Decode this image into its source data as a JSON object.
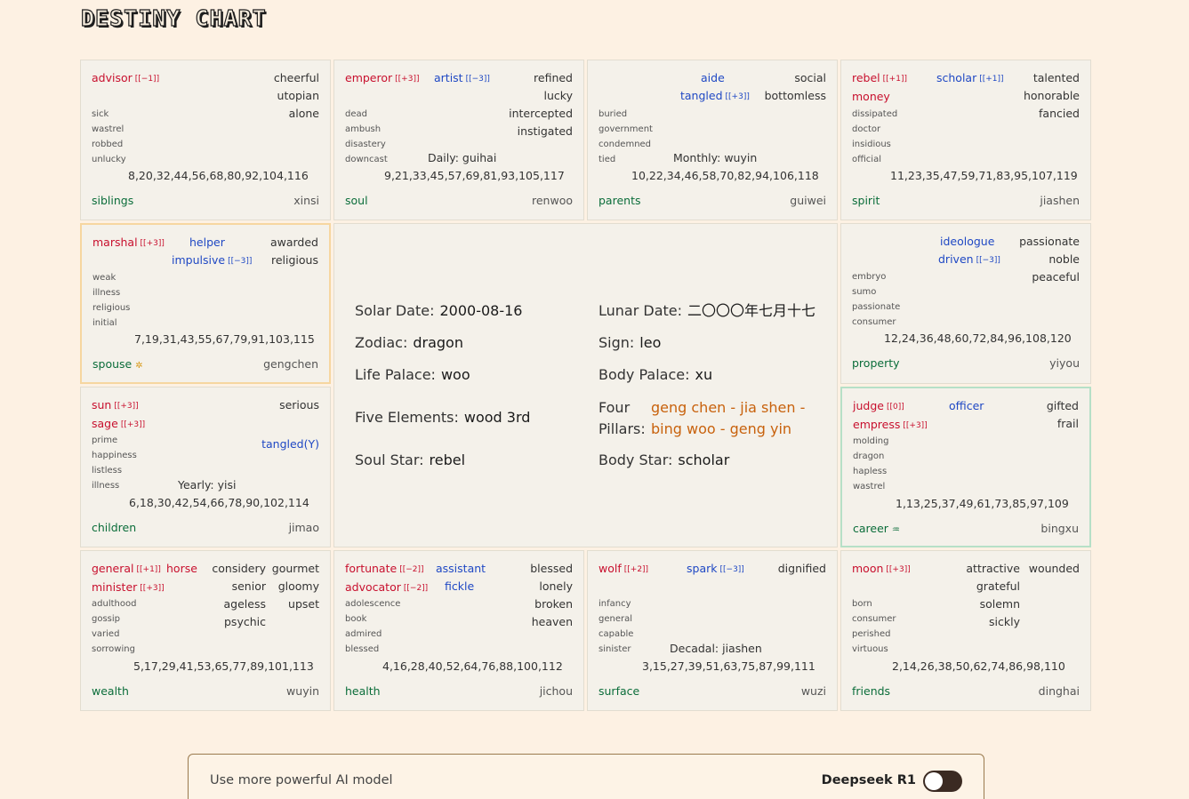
{
  "title": "DESTINY CHART",
  "palaces": [
    {
      "id": "siblings",
      "name": "siblings",
      "branch": "xinsi",
      "nums": "8,20,32,44,56,68,80,92,104,116",
      "majors": [
        {
          "text": "advisor",
          "tag": "[[−1]]"
        }
      ],
      "minors": [],
      "adj": [
        "cheerful",
        "utopian",
        "alone"
      ],
      "small": [
        "sick",
        "wastrel",
        "robbed",
        "unlucky"
      ],
      "extra": ""
    },
    {
      "id": "soul",
      "name": "soul",
      "branch": "renwoo",
      "nums": "9,21,33,45,57,69,81,93,105,117",
      "majors": [
        {
          "text": "emperor",
          "tag": "[[+3]]"
        }
      ],
      "minors": [
        {
          "text": "artist",
          "tag": "[[−3]]"
        }
      ],
      "adj": [
        "refined",
        "lucky",
        "intercepted",
        "instigated"
      ],
      "small": [
        "dead",
        "ambush",
        "disastery",
        "downcast"
      ],
      "extra": "Daily: guihai"
    },
    {
      "id": "parents",
      "name": "parents",
      "branch": "guiwei",
      "nums": "10,22,34,46,58,70,82,94,106,118",
      "majors": [],
      "minors": [
        {
          "text": "aide",
          "tag": ""
        },
        {
          "text": "tangled",
          "tag": "[[+3]]"
        }
      ],
      "adj": [
        "social",
        "bottomless"
      ],
      "small": [
        "buried",
        "government",
        "condemned",
        "tied"
      ],
      "extra": "Monthly: wuyin"
    },
    {
      "id": "spirit",
      "name": "spirit",
      "branch": "jiashen",
      "nums": "11,23,35,47,59,71,83,95,107,119",
      "majors": [
        {
          "text": "rebel",
          "tag": "[[+1]]"
        },
        {
          "text": "money",
          "tag": ""
        }
      ],
      "minors": [
        {
          "text": "scholar",
          "tag": "[[+1]]"
        }
      ],
      "adj": [
        "talented",
        "honorable",
        "fancied"
      ],
      "small": [
        "dissipated",
        "doctor",
        "insidious",
        "official"
      ],
      "extra": ""
    },
    {
      "id": "spouse",
      "name": "spouse",
      "branch": "gengchen",
      "nums": "7,19,31,43,55,67,79,91,103,115",
      "majors": [
        {
          "text": "marshal",
          "tag": "[[+3]]"
        }
      ],
      "minors": [
        {
          "text": "helper",
          "tag": ""
        },
        {
          "text": "impulsive",
          "tag": "[[−3]]"
        }
      ],
      "adj": [
        "awarded",
        "religious"
      ],
      "small": [
        "weak",
        "illness",
        "religious",
        "initial"
      ],
      "extra": ""
    },
    {
      "id": "property",
      "name": "property",
      "branch": "yiyou",
      "nums": "12,24,36,48,60,72,84,96,108,120",
      "majors": [],
      "minors": [
        {
          "text": "ideologue",
          "tag": ""
        },
        {
          "text": "driven",
          "tag": "[[−3]]"
        }
      ],
      "adj": [
        "passionate",
        "noble",
        "peaceful"
      ],
      "small": [
        "embryo",
        "sumo",
        "passionate",
        "consumer"
      ],
      "extra": ""
    },
    {
      "id": "children",
      "name": "children",
      "branch": "jimao",
      "nums": "6,18,30,42,54,66,78,90,102,114",
      "majors": [
        {
          "text": "sun",
          "tag": "[[+3]]"
        },
        {
          "text": "sage",
          "tag": "[[+3]]"
        }
      ],
      "minors": [
        {
          "text": "tangled(Y)",
          "tag": ""
        }
      ],
      "adj": [
        "serious"
      ],
      "small": [
        "prime",
        "happiness",
        "listless",
        "illness"
      ],
      "extra": "Yearly: yisi"
    },
    {
      "id": "career",
      "name": "career",
      "branch": "bingxu",
      "nums": "1,13,25,37,49,61,73,85,97,109",
      "majors": [
        {
          "text": "judge",
          "tag": "[[0]]"
        },
        {
          "text": "empress",
          "tag": "[[+3]]"
        }
      ],
      "minors": [
        {
          "text": "officer",
          "tag": ""
        }
      ],
      "adj": [
        "gifted",
        "frail"
      ],
      "small": [
        "molding",
        "dragon",
        "hapless",
        "wastrel"
      ],
      "extra": ""
    },
    {
      "id": "wealth",
      "name": "wealth",
      "branch": "wuyin",
      "nums": "5,17,29,41,53,65,77,89,101,113",
      "majors": [
        {
          "text": "general",
          "tag": "[[+1]]"
        },
        {
          "text": "minister",
          "tag": "[[+3]]"
        }
      ],
      "minors": [
        {
          "text": "horse",
          "tag": ""
        }
      ],
      "adj": [
        "considery",
        "gourmet",
        "senior",
        "gloomy",
        "ageless",
        "upset",
        "psychic"
      ],
      "small": [
        "adulthood",
        "gossip",
        "varied",
        "sorrowing"
      ],
      "extra": ""
    },
    {
      "id": "health",
      "name": "health",
      "branch": "jichou",
      "nums": "4,16,28,40,52,64,76,88,100,112",
      "majors": [
        {
          "text": "fortunate",
          "tag": "[[−2]]"
        },
        {
          "text": "advocator",
          "tag": "[[−2]]"
        }
      ],
      "minors": [
        {
          "text": "assistant",
          "tag": ""
        },
        {
          "text": "fickle",
          "tag": ""
        }
      ],
      "adj": [
        "blessed",
        "lonely",
        "broken",
        "heaven"
      ],
      "small": [
        "adolescence",
        "book",
        "admired",
        "blessed"
      ],
      "extra": ""
    },
    {
      "id": "surface",
      "name": "surface",
      "branch": "wuzi",
      "nums": "3,15,27,39,51,63,75,87,99,111",
      "majors": [
        {
          "text": "wolf",
          "tag": "[[+2]]"
        }
      ],
      "minors": [
        {
          "text": "spark",
          "tag": "[[−3]]"
        }
      ],
      "adj": [
        "dignified"
      ],
      "small": [
        "infancy",
        "general",
        "capable",
        "sinister"
      ],
      "extra": "Decadal: jiashen"
    },
    {
      "id": "friends",
      "name": "friends",
      "branch": "dinghai",
      "nums": "2,14,26,38,50,62,74,86,98,110",
      "majors": [
        {
          "text": "moon",
          "tag": "[[+3]]"
        }
      ],
      "minors": [],
      "adj": [
        "attractive",
        "wounded",
        "grateful",
        "solemn",
        "sickly"
      ],
      "small": [
        "born",
        "consumer",
        "perished",
        "virtuous"
      ],
      "extra": ""
    }
  ],
  "center": {
    "solar_date_label": "Solar Date:",
    "solar_date": "2000-08-16",
    "lunar_date_label": "Lunar Date:",
    "lunar_date": "二〇〇〇年七月十七",
    "zodiac_label": "Zodiac:",
    "zodiac": "dragon",
    "sign_label": "Sign:",
    "sign": "leo",
    "life_palace_label": "Life Palace:",
    "life_palace": "woo",
    "body_palace_label": "Body Palace:",
    "body_palace": "xu",
    "five_elements_label": "Five Elements:",
    "five_elements": "wood 3rd",
    "four_pillars_label_1": "Four",
    "four_pillars_label_2": "Pillars:",
    "four_pillars_1": "geng chen - jia shen -",
    "four_pillars_2": "bing woo - geng yin",
    "soul_star_label": "Soul Star:",
    "soul_star": "rebel",
    "body_star_label": "Body Star:",
    "body_star": "scholar"
  },
  "bottom": {
    "text": "Use more powerful AI model",
    "model": "Deepseek R1",
    "toggle_on": false
  }
}
